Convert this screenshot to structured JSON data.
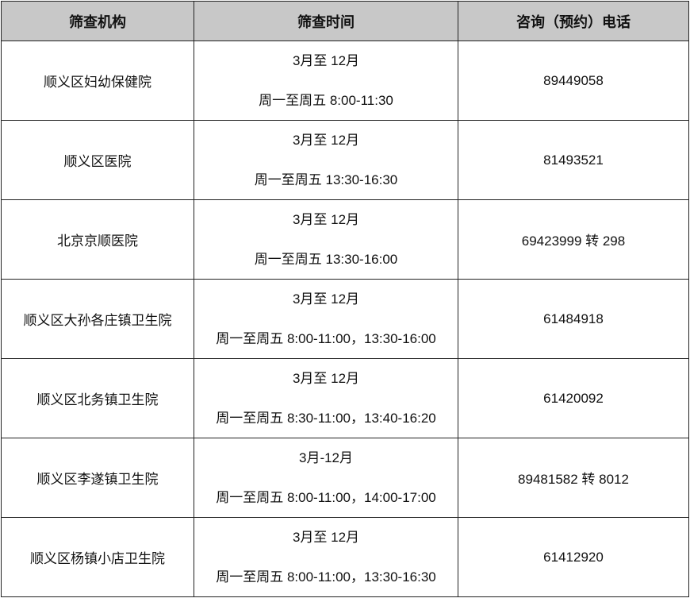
{
  "headers": [
    "筛查机构",
    "筛查时间",
    "咨询（预约）电话"
  ],
  "rows": [
    {
      "org": "顺义区妇幼保健院",
      "months": "3月至 12月",
      "hours": "周一至周五  8:00-11:30",
      "phone": "89449058"
    },
    {
      "org": "顺义区医院",
      "months": "3月至 12月",
      "hours": "周一至周五  13:30-16:30",
      "phone": "81493521"
    },
    {
      "org": "北京京顺医院",
      "months": "3月至 12月",
      "hours": "周一至周五  13:30-16:00",
      "phone": "69423999 转 298"
    },
    {
      "org": "顺义区大孙各庄镇卫生院",
      "months": "3月至 12月",
      "hours": "周一至周五  8:00-11:00，13:30-16:00",
      "phone": "61484918"
    },
    {
      "org": "顺义区北务镇卫生院",
      "months": "3月至 12月",
      "hours": "周一至周五  8:30-11:00，13:40-16:20",
      "phone": "61420092"
    },
    {
      "org": "顺义区李遂镇卫生院",
      "months": "3月-12月",
      "hours": "周一至周五  8:00-11:00，14:00-17:00",
      "phone": "89481582 转 8012"
    },
    {
      "org": "顺义区杨镇小店卫生院",
      "months": "3月至 12月",
      "hours": "周一至周五  8:00-11:00，13:30-16:30",
      "phone": "61412920"
    }
  ]
}
